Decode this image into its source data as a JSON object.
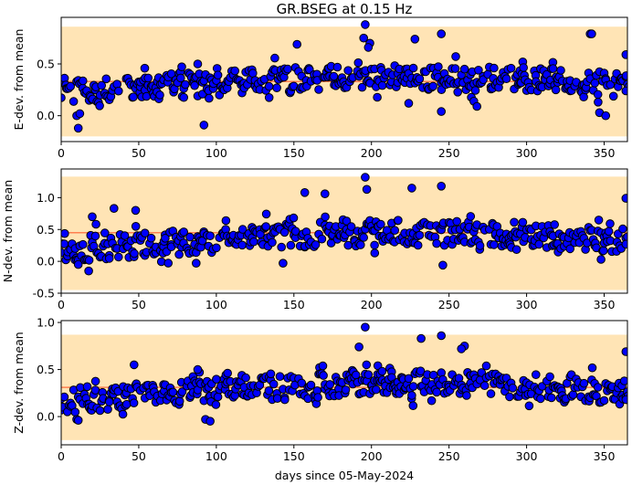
{
  "chart_data": {
    "title": "GR.BSEG at 0.15 Hz",
    "xlabel": "days since 05-May-2024",
    "type": "scatter",
    "colors": {
      "points": "#0000ff",
      "point_edge": "#000000",
      "band": "#ffe4b5",
      "median_line": "#ff7f50"
    },
    "x_ticks": [
      0,
      50,
      100,
      150,
      200,
      250,
      300,
      350
    ],
    "panels": [
      {
        "ylabel": "E-dev. from mean",
        "xlim": [
          0,
          365
        ],
        "ylim": [
          -0.25,
          0.95
        ],
        "y_ticks": [
          0.0,
          0.5
        ],
        "band": [
          -0.2,
          0.86
        ],
        "median": 0.33,
        "base": 0.26,
        "amp": 0.11,
        "noise": 0.12,
        "seed": 11,
        "extra": [
          [
            10,
            0.0
          ],
          [
            11,
            -0.12
          ],
          [
            12,
            0.02
          ],
          [
            92,
            -0.09
          ],
          [
            196,
            0.88
          ],
          [
            195,
            0.75
          ],
          [
            199,
            0.7
          ],
          [
            198,
            0.66
          ],
          [
            245,
            0.79
          ],
          [
            228,
            0.74
          ],
          [
            152,
            0.69
          ],
          [
            88,
            0.5
          ],
          [
            341,
            0.79
          ],
          [
            342,
            0.79
          ],
          [
            364,
            0.59
          ],
          [
            364,
            0.24
          ],
          [
            347,
            0.03
          ],
          [
            351,
            0.0
          ],
          [
            245,
            0.04
          ],
          [
            224,
            0.12
          ],
          [
            266,
            0.14
          ],
          [
            268,
            0.09
          ]
        ]
      },
      {
        "ylabel": "N-dev. from mean",
        "xlim": [
          0,
          365
        ],
        "ylim": [
          -0.5,
          1.45
        ],
        "y_ticks": [
          -0.5,
          0.0,
          0.5,
          1.0
        ],
        "band": [
          -0.45,
          1.33
        ],
        "median": 0.45,
        "base": 0.25,
        "amp": 0.2,
        "noise": 0.2,
        "seed": 23,
        "extra": [
          [
            11,
            -0.05
          ],
          [
            196,
            1.32
          ],
          [
            197,
            1.13
          ],
          [
            245,
            1.18
          ],
          [
            226,
            1.15
          ],
          [
            170,
            1.06
          ],
          [
            157,
            1.08
          ],
          [
            364,
            0.99
          ],
          [
            364,
            0.27
          ],
          [
            246,
            -0.06
          ],
          [
            143,
            -0.03
          ],
          [
            87,
            -0.03
          ],
          [
            348,
            0.03
          ],
          [
            34,
            0.83
          ],
          [
            48,
            0.8
          ],
          [
            20,
            0.7
          ]
        ]
      },
      {
        "ylabel": "Z-dev. from mean",
        "xlim": [
          0,
          365
        ],
        "ylim": [
          -0.3,
          1.02
        ],
        "y_ticks": [
          0.0,
          0.5,
          1.0
        ],
        "band": [
          -0.25,
          0.87
        ],
        "median": 0.31,
        "base": 0.2,
        "amp": 0.15,
        "noise": 0.13,
        "seed": 37,
        "extra": [
          [
            10,
            -0.03
          ],
          [
            11,
            -0.04
          ],
          [
            196,
            0.95
          ],
          [
            245,
            0.86
          ],
          [
            260,
            0.75
          ],
          [
            258,
            0.72
          ],
          [
            232,
            0.83
          ],
          [
            192,
            0.74
          ],
          [
            364,
            0.69
          ],
          [
            364,
            0.18
          ],
          [
            47,
            0.55
          ],
          [
            88,
            0.5
          ],
          [
            93,
            -0.03
          ],
          [
            96,
            -0.05
          ]
        ]
      }
    ]
  }
}
